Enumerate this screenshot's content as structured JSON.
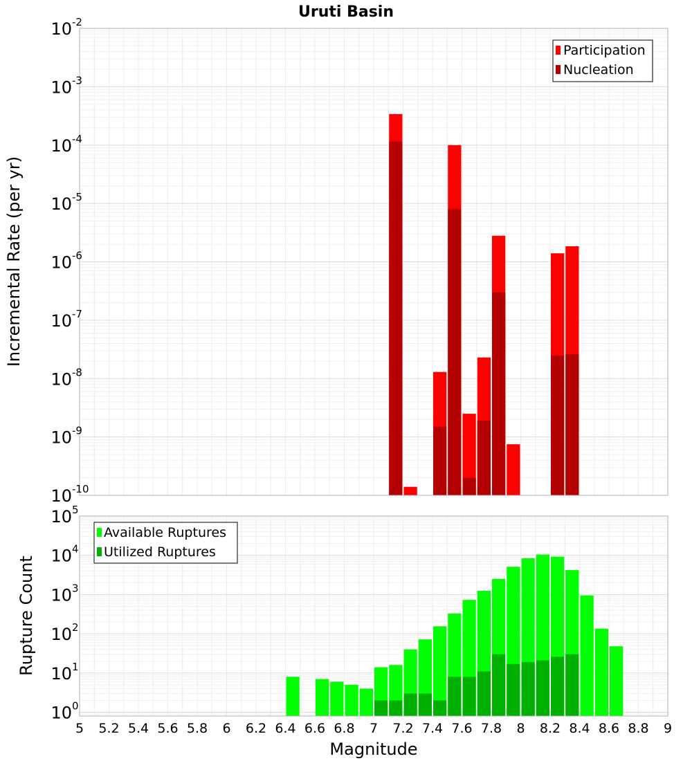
{
  "chart_data": [
    {
      "type": "bar",
      "title": "Uruti Basin",
      "xlabel": "",
      "ylabel": "Incremental Rate (per yr)",
      "yscale": "log",
      "ylim": [
        1e-10,
        0.01
      ],
      "xlim": [
        5,
        9
      ],
      "bin_width": 0.1,
      "grid": true,
      "legend_position": "top-right",
      "y_tick_labels": [
        {
          "base": "10",
          "exp": "-10"
        },
        {
          "base": "10",
          "exp": "-9"
        },
        {
          "base": "10",
          "exp": "-8"
        },
        {
          "base": "10",
          "exp": "-7"
        },
        {
          "base": "10",
          "exp": "-6"
        },
        {
          "base": "10",
          "exp": "-5"
        },
        {
          "base": "10",
          "exp": "-4"
        },
        {
          "base": "10",
          "exp": "-3"
        },
        {
          "base": "10",
          "exp": "-2"
        }
      ],
      "series": [
        {
          "name": "Participation",
          "color": "#ff0000",
          "points": [
            {
              "x": 7.15,
              "y": 0.00034
            },
            {
              "x": 7.25,
              "y": 1.4e-10
            },
            {
              "x": 7.45,
              "y": 1.3e-08
            },
            {
              "x": 7.55,
              "y": 0.0001
            },
            {
              "x": 7.65,
              "y": 2.5e-09
            },
            {
              "x": 7.75,
              "y": 2.3e-08
            },
            {
              "x": 7.85,
              "y": 2.8e-06
            },
            {
              "x": 7.95,
              "y": 7.5e-10
            },
            {
              "x": 8.25,
              "y": 1.4e-06
            },
            {
              "x": 8.35,
              "y": 1.85e-06
            }
          ]
        },
        {
          "name": "Nucleation",
          "color": "#b30000",
          "points": [
            {
              "x": 7.15,
              "y": 0.000115
            },
            {
              "x": 7.45,
              "y": 1.5e-09
            },
            {
              "x": 7.55,
              "y": 8e-06
            },
            {
              "x": 7.65,
              "y": 2e-10
            },
            {
              "x": 7.75,
              "y": 1.9e-09
            },
            {
              "x": 7.85,
              "y": 3e-07
            },
            {
              "x": 8.25,
              "y": 2.5e-08
            },
            {
              "x": 8.35,
              "y": 2.6e-08
            }
          ]
        }
      ]
    },
    {
      "type": "bar",
      "title": "",
      "xlabel": "Magnitude",
      "ylabel": "Rupture Count",
      "yscale": "log",
      "ylim": [
        0.8,
        100000
      ],
      "xlim": [
        5,
        9
      ],
      "bin_width": 0.1,
      "grid": true,
      "legend_position": "top-left",
      "x_tick_labels": [
        "5",
        "5.2",
        "5.4",
        "5.6",
        "5.8",
        "6",
        "6.2",
        "6.4",
        "6.6",
        "6.8",
        "7",
        "7.2",
        "7.4",
        "7.6",
        "7.8",
        "8",
        "8.2",
        "8.4",
        "8.6",
        "8.8",
        "9"
      ],
      "y_tick_labels": [
        {
          "base": "10",
          "exp": "0"
        },
        {
          "base": "10",
          "exp": "1"
        },
        {
          "base": "10",
          "exp": "2"
        },
        {
          "base": "10",
          "exp": "3"
        },
        {
          "base": "10",
          "exp": "4"
        },
        {
          "base": "10",
          "exp": "5"
        }
      ],
      "series": [
        {
          "name": "Available Ruptures",
          "color": "#00ff00",
          "points": [
            {
              "x": 6.45,
              "y": 8
            },
            {
              "x": 6.65,
              "y": 7
            },
            {
              "x": 6.75,
              "y": 6
            },
            {
              "x": 6.85,
              "y": 5
            },
            {
              "x": 6.95,
              "y": 4
            },
            {
              "x": 7.05,
              "y": 14
            },
            {
              "x": 7.15,
              "y": 16
            },
            {
              "x": 7.25,
              "y": 40
            },
            {
              "x": 7.35,
              "y": 72
            },
            {
              "x": 7.45,
              "y": 155
            },
            {
              "x": 7.55,
              "y": 330
            },
            {
              "x": 7.65,
              "y": 730
            },
            {
              "x": 7.75,
              "y": 1250
            },
            {
              "x": 7.85,
              "y": 2500
            },
            {
              "x": 7.95,
              "y": 5100
            },
            {
              "x": 8.05,
              "y": 8400
            },
            {
              "x": 8.15,
              "y": 10500
            },
            {
              "x": 8.25,
              "y": 9200
            },
            {
              "x": 8.35,
              "y": 4200
            },
            {
              "x": 8.45,
              "y": 950
            },
            {
              "x": 8.55,
              "y": 135
            },
            {
              "x": 8.65,
              "y": 48
            }
          ]
        },
        {
          "name": "Utilized Ruptures",
          "color": "#00b000",
          "points": [
            {
              "x": 7.05,
              "y": 2
            },
            {
              "x": 7.15,
              "y": 2
            },
            {
              "x": 7.25,
              "y": 3
            },
            {
              "x": 7.35,
              "y": 3
            },
            {
              "x": 7.45,
              "y": 2
            },
            {
              "x": 7.55,
              "y": 8
            },
            {
              "x": 7.65,
              "y": 8
            },
            {
              "x": 7.75,
              "y": 11
            },
            {
              "x": 7.85,
              "y": 30
            },
            {
              "x": 7.95,
              "y": 17
            },
            {
              "x": 8.05,
              "y": 19
            },
            {
              "x": 8.15,
              "y": 21
            },
            {
              "x": 8.25,
              "y": 26
            },
            {
              "x": 8.35,
              "y": 30
            }
          ]
        }
      ]
    }
  ]
}
